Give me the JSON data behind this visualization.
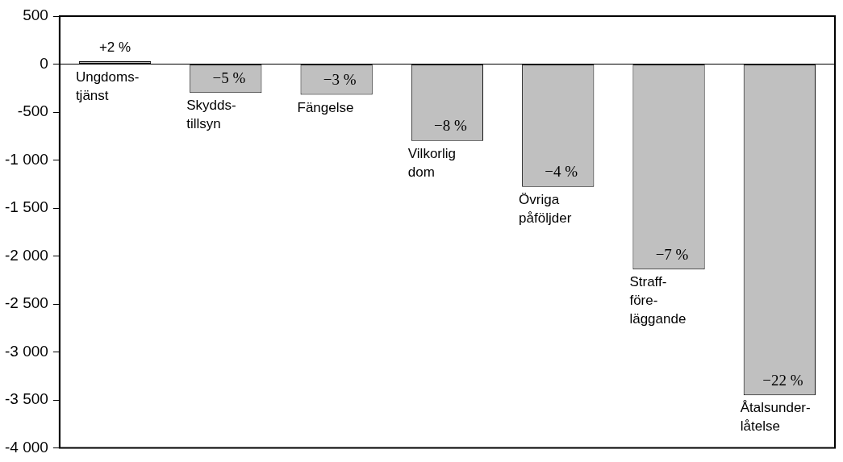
{
  "chart_data": {
    "type": "bar",
    "categories": [
      "Ungdoms-\ntjänst",
      "Skydds-\ntillsyn",
      "Fängelse",
      "Vilkorlig\ndom",
      "Övriga\npåföljder",
      "Straff-\nföre-\nläggande",
      "Åtalsunder-\nlåtelse"
    ],
    "values": [
      30,
      -300,
      -320,
      -800,
      -1280,
      -2140,
      -3450
    ],
    "color": "#c0c0c0",
    "ylim": [
      -4000,
      500
    ],
    "yticks": [
      500,
      0,
      {
        "value": -500,
        "label": "-500"
      },
      {
        "value": -1000,
        "label": "-1 000"
      },
      {
        "value": -1500,
        "label": "-1 500"
      },
      {
        "value": -2000,
        "label": "-2 000"
      },
      {
        "value": -2500,
        "label": "-2 500"
      },
      {
        "value": -3000,
        "label": "-3 000"
      },
      {
        "value": -3500,
        "label": "-3 500"
      },
      {
        "value": -4000,
        "label": "-4 000"
      }
    ],
    "annotations": [
      {
        "text": "+2 %",
        "x": "Ungdoms-\ntjänst",
        "y": 30
      },
      {
        "text": "−5 %",
        "x": "Skydds-\ntillsyn",
        "y": -300
      },
      {
        "text": "−3 %",
        "x": "Fängelse",
        "y": -320
      },
      {
        "text": "−8 %",
        "x": "Vilkorlig\ndom",
        "y": -800
      },
      {
        "text": "−4 %",
        "x": "Övriga\npåföljder",
        "y": -1280
      },
      {
        "text": "−7 %",
        "x": "Straff-\nföre-\nläggande",
        "y": -2140
      },
      {
        "text": "−22 %",
        "x": "Åtalsunder-\nlåtelse",
        "y": -3450
      }
    ],
    "grid": false,
    "legend": false
  }
}
